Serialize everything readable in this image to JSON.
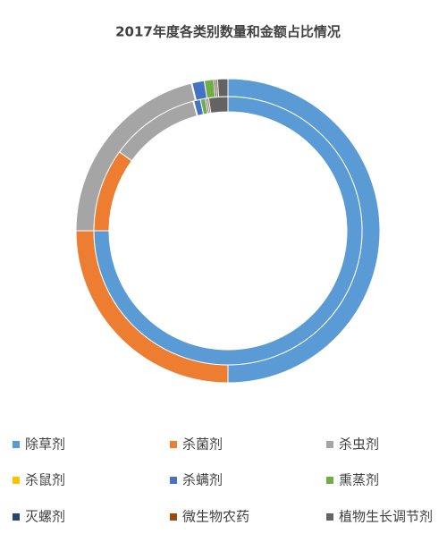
{
  "chart_data": {
    "type": "doughnut",
    "title": "2017年度各类别数量和金额占比情况",
    "categories": [
      "除草剂",
      "杀菌剂",
      "杀虫剂",
      "杀鼠剂",
      "杀螨剂",
      "熏蒸剂",
      "灭螺剂",
      "微生物农药",
      "植物生长调节剂"
    ],
    "colors": [
      "#5b9bd5",
      "#ed7d31",
      "#a5a5a5",
      "#ffc000",
      "#4472c4",
      "#70ad47",
      "#264478",
      "#9e480e",
      "#636363"
    ],
    "series": [
      {
        "values": [
          50,
          25,
          21.1,
          0.1,
          1.3,
          1.0,
          0.2,
          0.2,
          1.1
        ]
      },
      {
        "values": [
          75,
          10,
          10.8,
          0.1,
          0.8,
          0.6,
          0.2,
          0.2,
          2.3
        ]
      }
    ],
    "legend": "bottom"
  }
}
